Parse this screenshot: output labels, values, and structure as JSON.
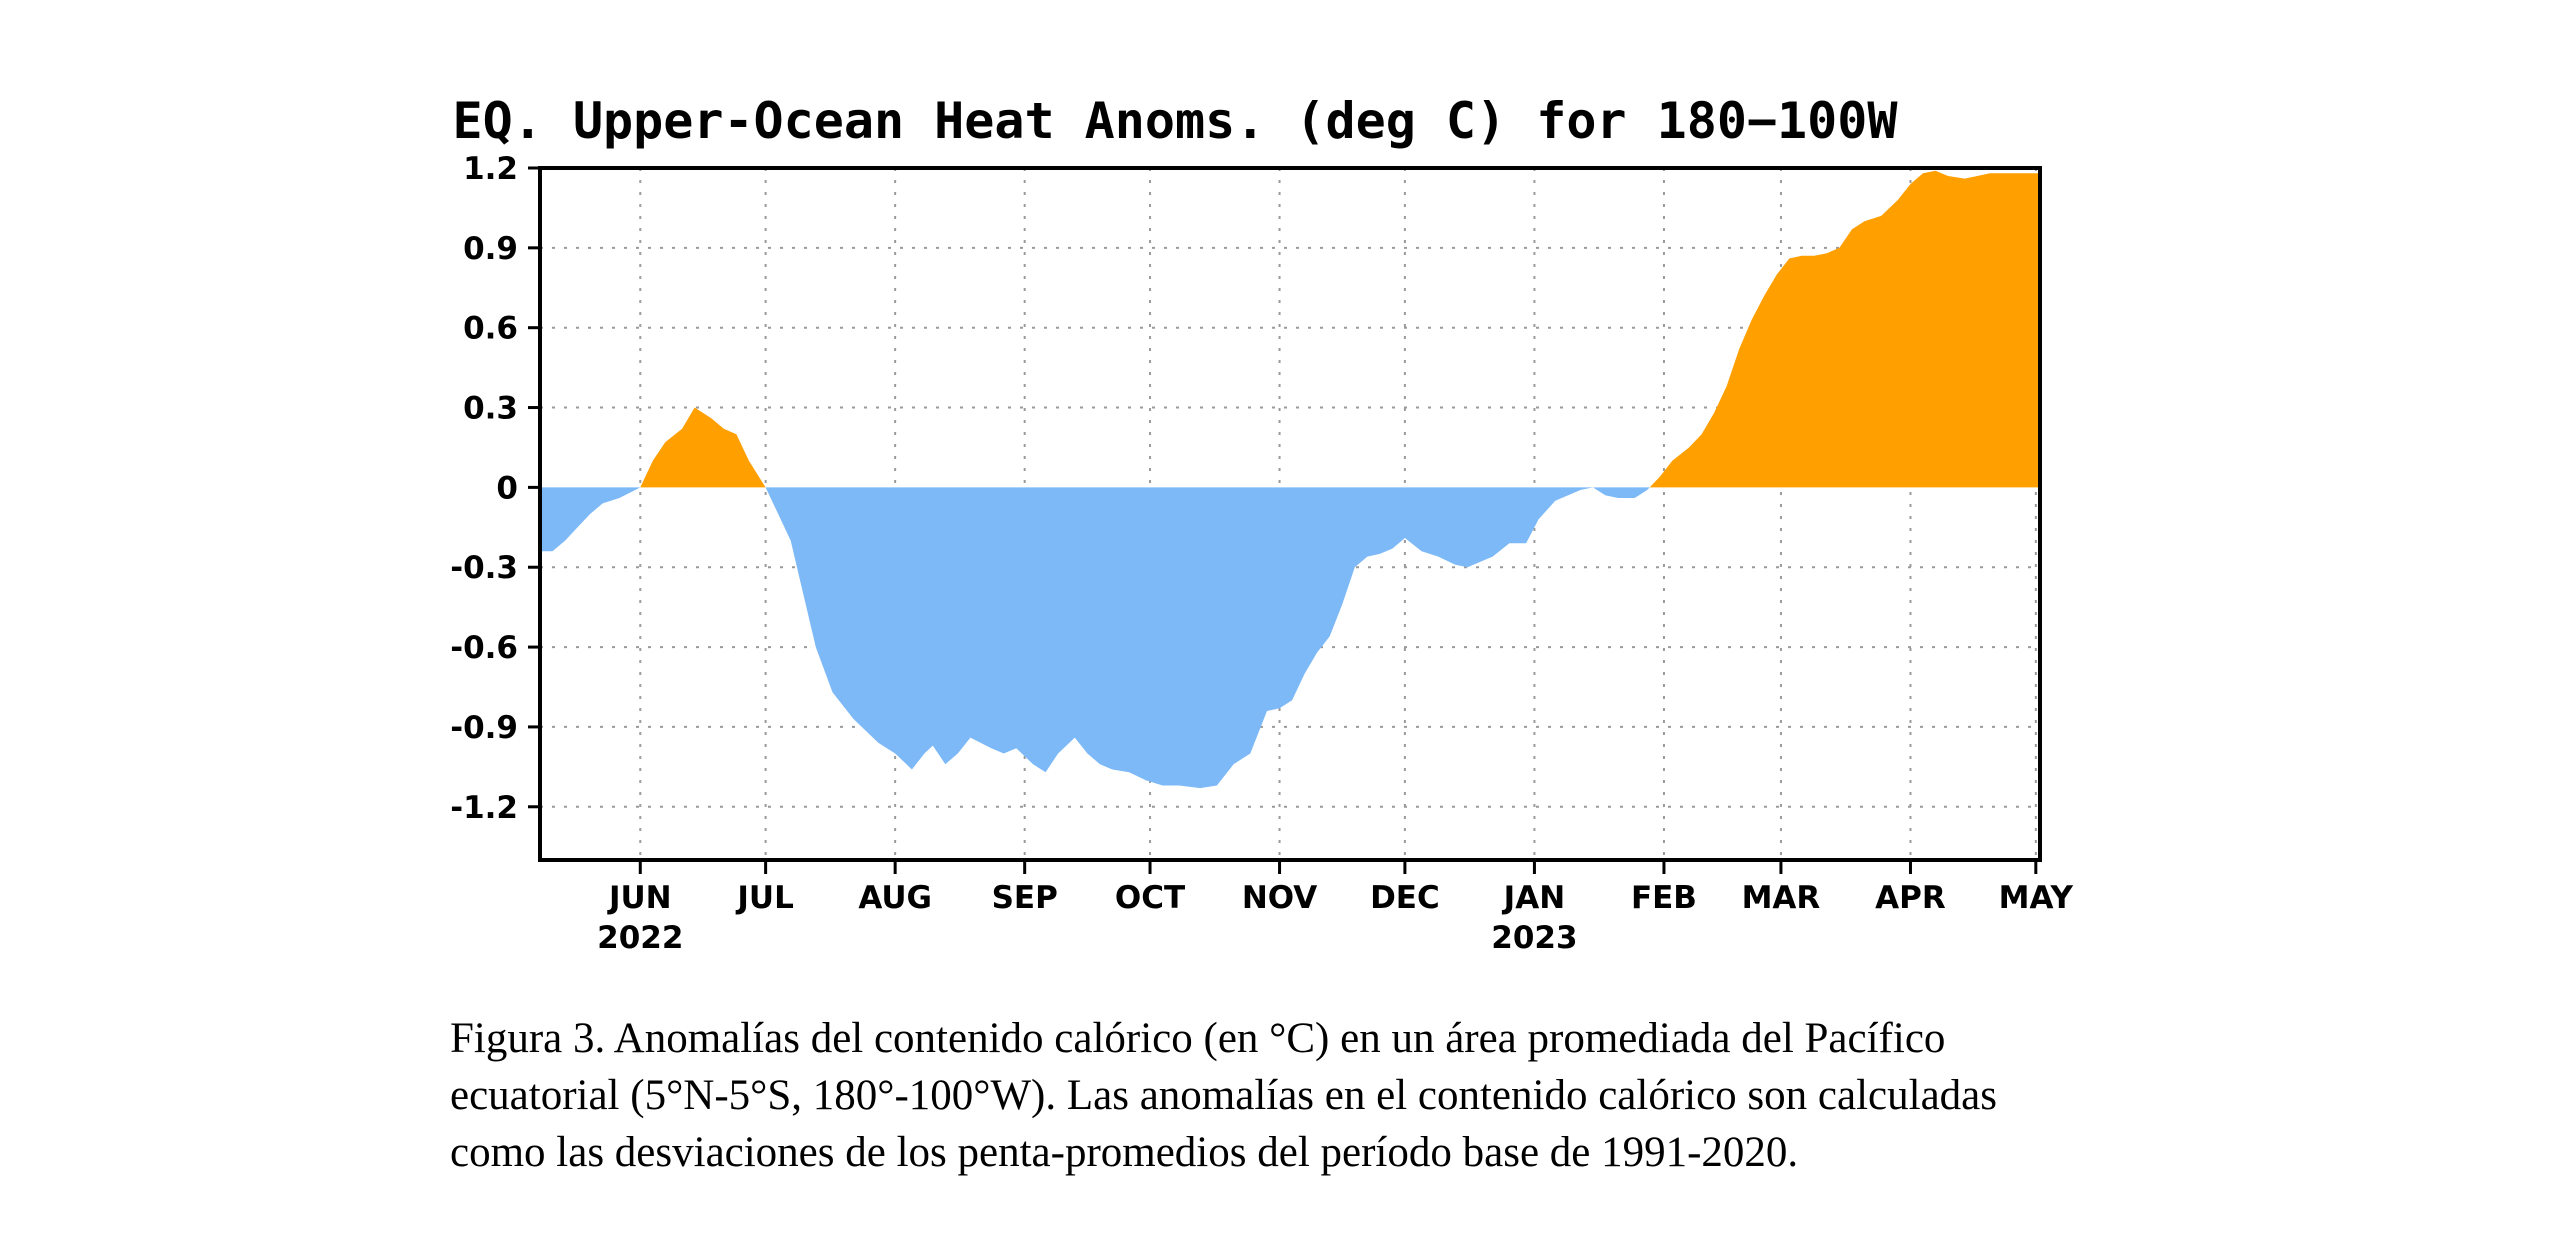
{
  "chart_data": {
    "type": "area",
    "title": "EQ. Upper-Ocean Heat Anoms. (deg C) for 180−100W",
    "xlabel": "",
    "ylabel": "",
    "ylim": [
      -1.4,
      1.2
    ],
    "xlim": [
      "2022-05-08",
      "2023-05-02"
    ],
    "yticks": [
      1.2,
      0.9,
      0.6,
      0.3,
      0,
      -0.3,
      -0.6,
      -0.9,
      -1.2
    ],
    "ytick_labels": [
      "1.2",
      "0.9",
      "0.6",
      "0.3",
      "0",
      "-0.3",
      "-0.6",
      "-0.9",
      "-1.2"
    ],
    "xticks": [
      {
        "date": "2022-06-01",
        "label": "JUN",
        "year": "2022"
      },
      {
        "date": "2022-07-01",
        "label": "JUL",
        "year": ""
      },
      {
        "date": "2022-08-01",
        "label": "AUG",
        "year": ""
      },
      {
        "date": "2022-09-01",
        "label": "SEP",
        "year": ""
      },
      {
        "date": "2022-10-01",
        "label": "OCT",
        "year": ""
      },
      {
        "date": "2022-11-01",
        "label": "NOV",
        "year": ""
      },
      {
        "date": "2022-12-01",
        "label": "DEC",
        "year": ""
      },
      {
        "date": "2023-01-01",
        "label": "JAN",
        "year": "2023"
      },
      {
        "date": "2023-02-01",
        "label": "FEB",
        "year": ""
      },
      {
        "date": "2023-03-01",
        "label": "MAR",
        "year": ""
      },
      {
        "date": "2023-04-01",
        "label": "APR",
        "year": ""
      },
      {
        "date": "2023-05-01",
        "label": "MAY",
        "year": ""
      }
    ],
    "grid": true,
    "positive_color": "#FF9F00",
    "negative_color": "#7DB9F7",
    "series": [
      {
        "x": [
          "2022-05-08",
          "2022-05-11",
          "2022-05-14",
          "2022-05-17",
          "2022-05-20",
          "2022-05-23",
          "2022-05-27",
          "2022-06-01",
          "2022-06-04",
          "2022-06-07",
          "2022-06-11",
          "2022-06-14",
          "2022-06-18",
          "2022-06-21",
          "2022-06-24",
          "2022-06-27",
          "2022-07-01",
          "2022-07-04",
          "2022-07-07",
          "2022-07-10",
          "2022-07-13",
          "2022-07-17",
          "2022-07-22",
          "2022-07-28",
          "2022-08-01",
          "2022-08-05",
          "2022-08-08",
          "2022-08-10",
          "2022-08-13",
          "2022-08-16",
          "2022-08-19",
          "2022-08-24",
          "2022-08-27",
          "2022-08-30",
          "2022-09-03",
          "2022-09-06",
          "2022-09-09",
          "2022-09-13",
          "2022-09-16",
          "2022-09-19",
          "2022-09-22",
          "2022-09-26",
          "2022-09-30",
          "2022-10-04",
          "2022-10-08",
          "2022-10-13",
          "2022-10-17",
          "2022-10-21",
          "2022-10-25",
          "2022-10-29",
          "2022-11-01",
          "2022-11-04",
          "2022-11-07",
          "2022-11-10",
          "2022-11-13",
          "2022-11-16",
          "2022-11-19",
          "2022-11-22",
          "2022-11-25",
          "2022-11-28",
          "2022-12-01",
          "2022-12-05",
          "2022-12-09",
          "2022-12-13",
          "2022-12-16",
          "2022-12-19",
          "2022-12-22",
          "2022-12-26",
          "2022-12-30",
          "2023-01-02",
          "2023-01-06",
          "2023-01-09",
          "2023-01-12",
          "2023-01-15",
          "2023-01-18",
          "2023-01-21",
          "2023-01-25",
          "2023-01-28",
          "2023-01-31",
          "2023-02-03",
          "2023-02-07",
          "2023-02-10",
          "2023-02-13",
          "2023-02-16",
          "2023-02-19",
          "2023-02-22",
          "2023-02-25",
          "2023-02-28",
          "2023-03-03",
          "2023-03-06",
          "2023-03-09",
          "2023-03-12",
          "2023-03-15",
          "2023-03-18",
          "2023-03-21",
          "2023-03-25",
          "2023-03-29",
          "2023-04-01",
          "2023-04-04",
          "2023-04-07",
          "2023-04-10",
          "2023-04-14",
          "2023-04-17",
          "2023-04-20",
          "2023-04-23",
          "2023-04-26",
          "2023-04-29",
          "2023-05-02"
        ],
        "values": [
          -0.24,
          -0.24,
          -0.2,
          -0.15,
          -0.1,
          -0.06,
          -0.04,
          0.0,
          0.1,
          0.17,
          0.22,
          0.3,
          0.26,
          0.22,
          0.2,
          0.1,
          0.0,
          -0.1,
          -0.2,
          -0.4,
          -0.6,
          -0.77,
          -0.87,
          -0.96,
          -1.0,
          -1.06,
          -1.0,
          -0.97,
          -1.04,
          -1.0,
          -0.94,
          -0.98,
          -1.0,
          -0.98,
          -1.04,
          -1.07,
          -1.0,
          -0.94,
          -1.0,
          -1.04,
          -1.06,
          -1.07,
          -1.1,
          -1.12,
          -1.12,
          -1.13,
          -1.12,
          -1.04,
          -1.0,
          -0.84,
          -0.83,
          -0.8,
          -0.7,
          -0.62,
          -0.56,
          -0.44,
          -0.3,
          -0.26,
          -0.25,
          -0.23,
          -0.19,
          -0.24,
          -0.26,
          -0.29,
          -0.3,
          -0.28,
          -0.26,
          -0.21,
          -0.21,
          -0.12,
          -0.05,
          -0.03,
          -0.01,
          0.0,
          -0.03,
          -0.04,
          -0.04,
          -0.01,
          0.04,
          0.1,
          0.15,
          0.2,
          0.28,
          0.38,
          0.52,
          0.63,
          0.72,
          0.8,
          0.86,
          0.87,
          0.87,
          0.88,
          0.9,
          0.97,
          1.0,
          1.02,
          1.08,
          1.14,
          1.18,
          1.19,
          1.17,
          1.16,
          1.17,
          1.18,
          1.18,
          1.18,
          1.18,
          1.18
        ]
      }
    ]
  },
  "caption": {
    "line1": "Figura 3. Anomalías del contenido calórico (en °C) en un área promediada del Pacífico",
    "line2": "ecuatorial (5°N-5°S, 180°-100°W). Las anomalías en el contenido calórico son calculadas",
    "line3": "como las desviaciones de los penta-promedios del período base de 1991-2020."
  }
}
